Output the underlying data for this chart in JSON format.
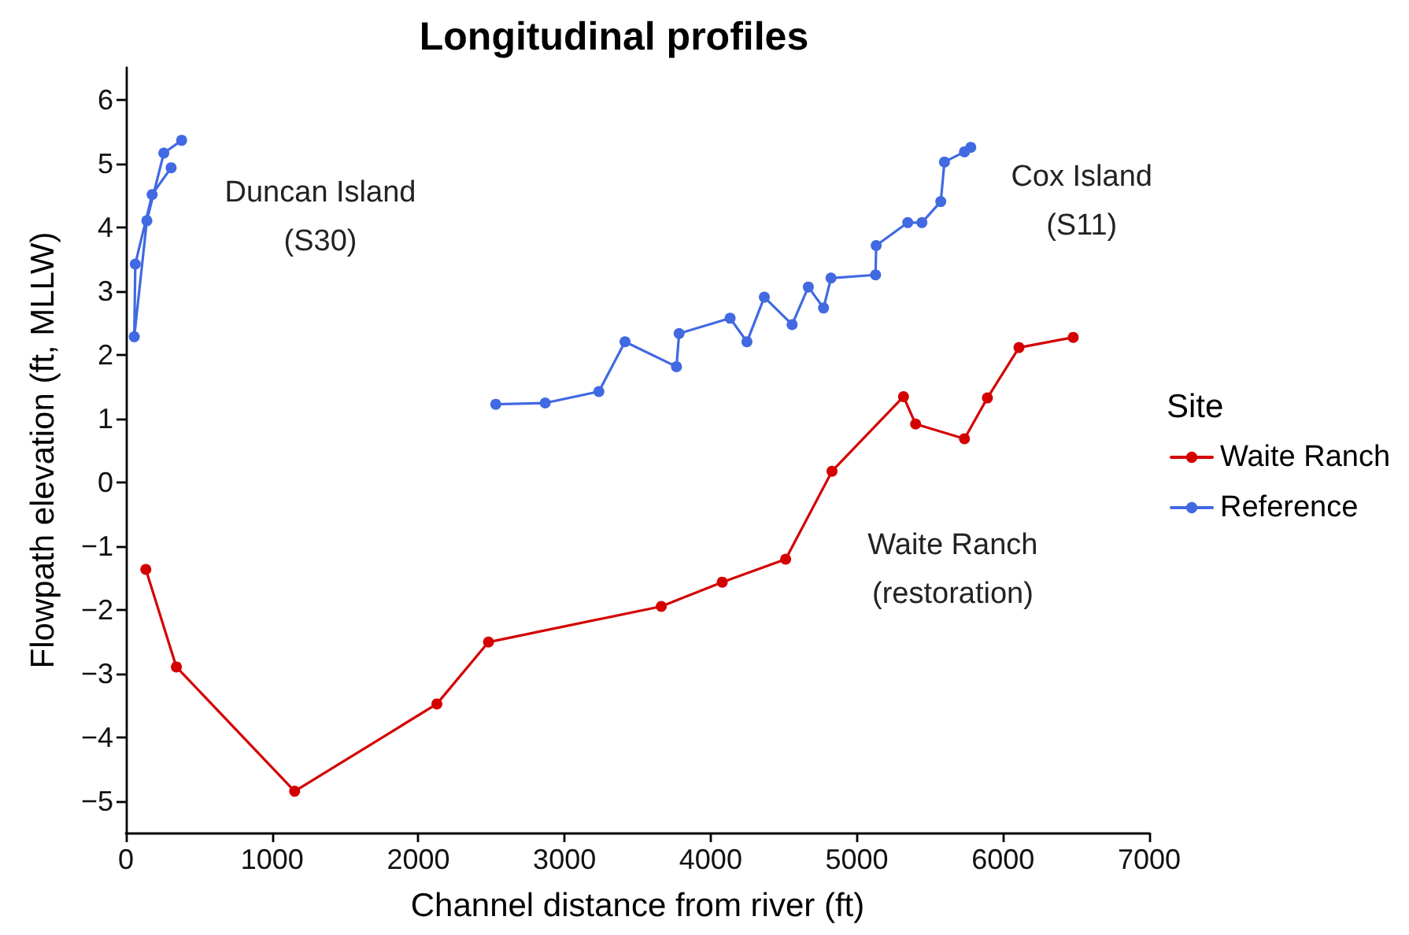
{
  "chart_data": {
    "type": "line",
    "title": "Longitudinal profiles",
    "xlabel": "Channel distance from river (ft)",
    "ylabel": "Flowpath elevation (ft, MLLW)",
    "legend_title": "Site",
    "legend": "right",
    "marker": "circle",
    "line_style": "solid",
    "grid": false,
    "xlim": [
      0,
      7000
    ],
    "xticks": [
      0,
      1000,
      2000,
      3000,
      4000,
      5000,
      6000,
      7000
    ],
    "ylim": [
      -5.5,
      6.5
    ],
    "yticks": [
      {
        "value": -5,
        "label": "−5"
      },
      {
        "value": -4,
        "label": "−4"
      },
      {
        "value": -3,
        "label": "−3"
      },
      {
        "value": -2,
        "label": "−2"
      },
      {
        "value": -1,
        "label": "−1"
      },
      0,
      1,
      2,
      3,
      4,
      5,
      6
    ],
    "series": [
      {
        "name": "Waite Ranch",
        "color": "#d40000",
        "x": [
          136,
          345,
          1154,
          2127,
          2480,
          3662,
          4079,
          4513,
          4830,
          5319,
          5402,
          5736,
          5893,
          6109,
          6480
        ],
        "values": [
          -1.37,
          -2.9,
          -4.85,
          -3.48,
          -2.51,
          -1.95,
          -1.57,
          -1.21,
          0.17,
          1.34,
          0.91,
          0.68,
          1.32,
          2.11,
          2.27
        ]
      },
      {
        "name": "Reference",
        "color": "#4169e1",
        "x": [
          309,
          179,
          64,
          57,
          143,
          259,
          381,
          null,
          2530,
          2868,
          3235,
          3414,
          3766,
          3784,
          4133,
          4248,
          4367,
          4557,
          4668,
          4772,
          4823,
          5128,
          5132,
          5348,
          5445,
          5574,
          5599,
          5736,
          5779
        ],
        "values": [
          4.93,
          4.51,
          3.42,
          2.28,
          4.1,
          5.16,
          5.36,
          null,
          1.22,
          1.24,
          1.42,
          2.2,
          1.81,
          2.33,
          2.57,
          2.2,
          2.9,
          2.47,
          3.06,
          2.73,
          3.2,
          3.25,
          3.71,
          4.07,
          4.07,
          4.4,
          5.02,
          5.18,
          5.25
        ]
      }
    ],
    "annotations": [
      "Duncan Island\n(S30)",
      "Cox Island\n(S11)",
      "Waite Ranch\n(restoration)"
    ]
  }
}
